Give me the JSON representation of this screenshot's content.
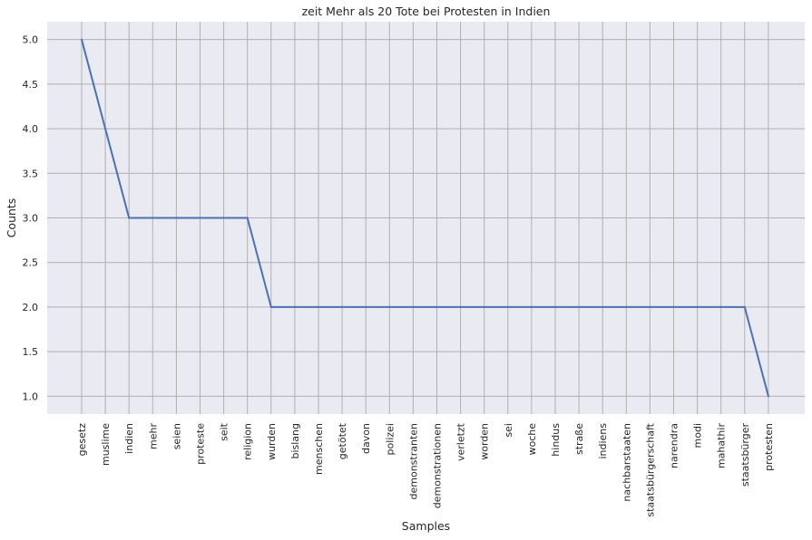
{
  "chart_data": {
    "type": "line",
    "title": "zeit Mehr als 20 Tote bei Protesten in Indien",
    "xlabel": "Samples",
    "ylabel": "Counts",
    "categories": [
      "gesetz",
      "muslime",
      "indien",
      "mehr",
      "seien",
      "proteste",
      "seit",
      "religion",
      "wurden",
      "bislang",
      "menschen",
      "getötet",
      "davon",
      "polizei",
      "demonstranten",
      "demonstrationen",
      "verletzt",
      "worden",
      "sei",
      "woche",
      "hindus",
      "straße",
      "indiens",
      "nachbarstaaten",
      "staatsbürgerschaft",
      "narendra",
      "modi",
      "mahathir",
      "staatsbürger",
      "protesten"
    ],
    "values": [
      5,
      4,
      3,
      3,
      3,
      3,
      3,
      3,
      2,
      2,
      2,
      2,
      2,
      2,
      2,
      2,
      2,
      2,
      2,
      2,
      2,
      2,
      2,
      2,
      2,
      2,
      2,
      2,
      2,
      1
    ],
    "ylim": [
      0.8,
      5.2
    ],
    "yticks": [
      1.0,
      1.5,
      2.0,
      2.5,
      3.0,
      3.5,
      4.0,
      4.5,
      5.0
    ],
    "ytick_labels": [
      "1.0",
      "1.5",
      "2.0",
      "2.5",
      "3.0",
      "3.5",
      "4.0",
      "4.5",
      "5.0"
    ],
    "grid": true,
    "colors": {
      "background": "#eaeaf2",
      "grid": "#b0b0b0",
      "line": "#4c72b0"
    }
  }
}
